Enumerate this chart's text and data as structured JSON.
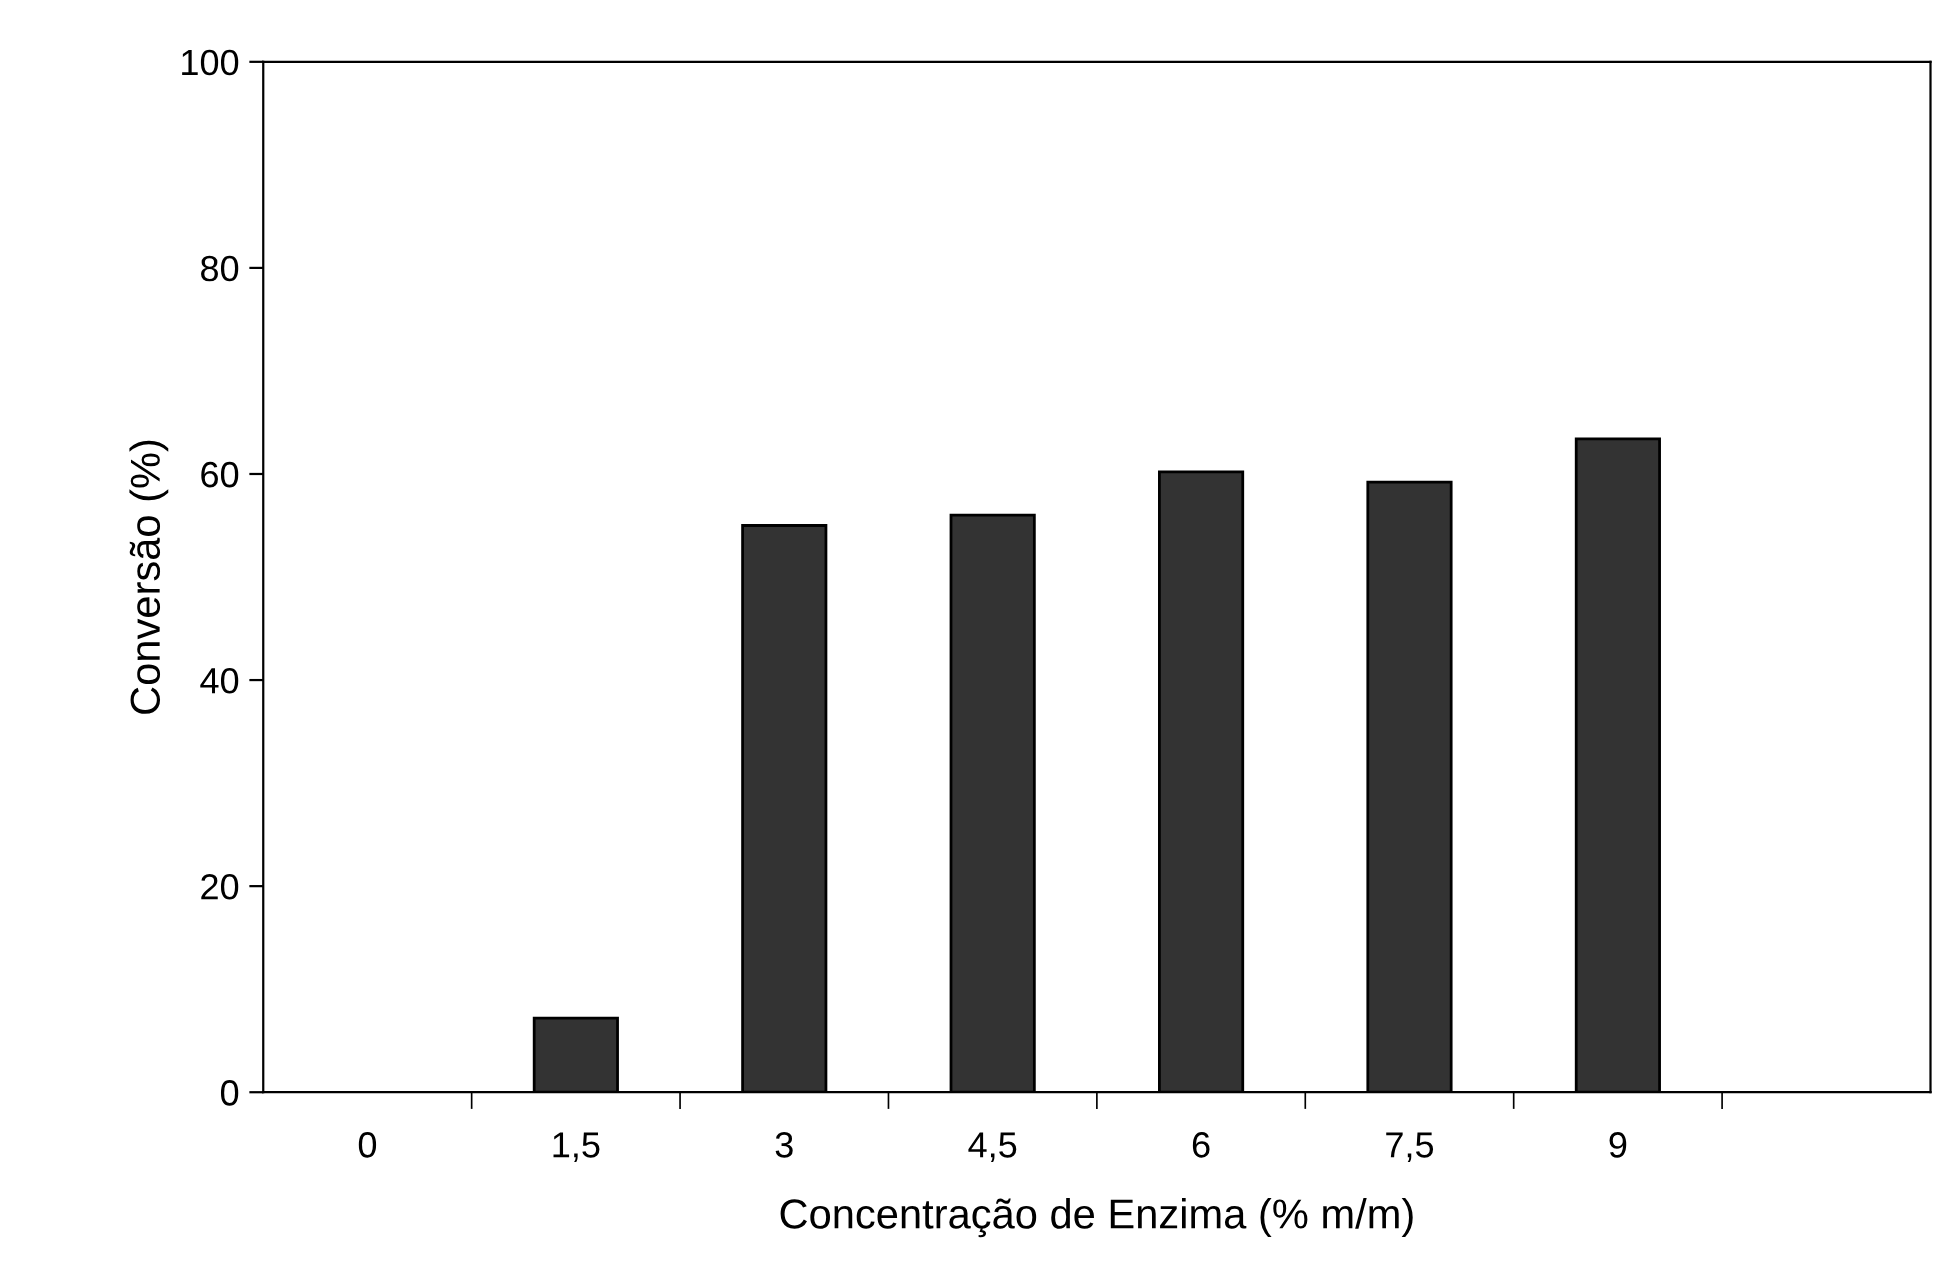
{
  "chart_data": {
    "type": "bar",
    "xlabel": "Concentração de Enzima (% m/m)",
    "ylabel": "Conversão (%)",
    "categories": [
      "0",
      "1,5",
      "3",
      "4,5",
      "6",
      "7,5",
      "9",
      null
    ],
    "values": [
      0,
      7.2,
      55,
      56,
      60.2,
      59.2,
      63.4,
      null
    ],
    "color": "#333333",
    "ylim": [
      0,
      100
    ],
    "yticks": [
      0,
      20,
      40,
      60,
      80,
      100
    ],
    "grid": false,
    "legend": false
  }
}
